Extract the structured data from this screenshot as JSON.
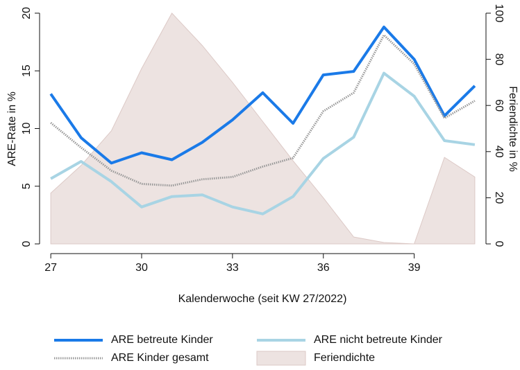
{
  "chart_data": {
    "type": "line",
    "x": [
      27,
      28,
      29,
      30,
      31,
      32,
      33,
      34,
      35,
      36,
      37,
      38,
      39,
      40,
      41
    ],
    "series": [
      {
        "name": "ARE betreute Kinder",
        "color": "#1a7ae8",
        "style": "solid",
        "axis": "y",
        "values": [
          13.0,
          9.2,
          7.0,
          7.9,
          7.3,
          8.8,
          10.75,
          13.1,
          10.45,
          14.65,
          14.95,
          18.8,
          16.0,
          11.1,
          13.7
        ]
      },
      {
        "name": "ARE nicht betreute Kinder",
        "color": "#a8d4e4",
        "style": "solid",
        "axis": "y",
        "values": [
          5.65,
          7.15,
          5.4,
          3.2,
          4.1,
          4.25,
          3.2,
          2.6,
          4.1,
          7.4,
          9.25,
          14.8,
          12.8,
          8.95,
          8.6
        ]
      },
      {
        "name": "ARE Kinder gesamt",
        "color": "#999999",
        "style": "dotted",
        "axis": "y",
        "values": [
          10.5,
          8.35,
          6.35,
          5.2,
          5.05,
          5.6,
          5.8,
          6.7,
          7.45,
          11.5,
          13.1,
          18.1,
          15.6,
          10.9,
          12.4
        ]
      },
      {
        "name": "Feriendichte",
        "color": "#ede3e1",
        "style": "area",
        "axis": "y2",
        "values": [
          22,
          34,
          49,
          76,
          100,
          86,
          70,
          53,
          36,
          20,
          3,
          0.6,
          0,
          37.5,
          29
        ]
      }
    ],
    "xlabel": "Kalenderwoche (seit KW 27/2022)",
    "ylabel": "ARE-Rate in %",
    "y2label": "Feriendichte in %",
    "xlim": [
      26.63,
      41.37
    ],
    "xticks": [
      27,
      30,
      33,
      36,
      39
    ],
    "ylim": [
      0,
      20
    ],
    "yticks": [
      0,
      5,
      10,
      15,
      20
    ],
    "y2lim": [
      0,
      100
    ],
    "y2ticks": [
      0,
      20,
      40,
      60,
      80,
      100
    ],
    "legend": "bottom"
  }
}
